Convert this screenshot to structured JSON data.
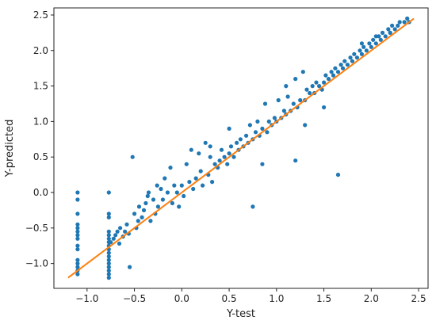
{
  "chart_data": {
    "type": "scatter",
    "title": "",
    "xlabel": "Y-test",
    "ylabel": "Y-predicted",
    "xlim": [
      -1.35,
      2.6
    ],
    "ylim": [
      -1.35,
      2.6
    ],
    "xticks": [
      -1.0,
      -0.5,
      0.0,
      0.5,
      1.0,
      1.5,
      2.0,
      2.5
    ],
    "yticks": [
      -1.0,
      -0.5,
      0.0,
      0.5,
      1.0,
      1.5,
      2.0,
      2.5
    ],
    "xtick_labels": [
      "−1.0",
      "−0.5",
      "0.0",
      "0.5",
      "1.0",
      "1.5",
      "2.0",
      "2.5"
    ],
    "ytick_labels": [
      "−1.0",
      "−0.5",
      "0.0",
      "0.5",
      "1.0",
      "1.5",
      "2.0",
      "2.5"
    ],
    "grid": false,
    "colors": {
      "points": "#1f77b4",
      "fit_line": "#ff7f0e",
      "axes": "#222222"
    },
    "series": [
      {
        "kind": "scatter",
        "points": [
          [
            -1.1,
            0.0
          ],
          [
            -1.1,
            -0.1
          ],
          [
            -1.1,
            -0.3
          ],
          [
            -1.1,
            -0.45
          ],
          [
            -1.1,
            -0.5
          ],
          [
            -1.1,
            -0.55
          ],
          [
            -1.1,
            -0.6
          ],
          [
            -1.1,
            -0.65
          ],
          [
            -1.1,
            -0.75
          ],
          [
            -1.1,
            -0.8
          ],
          [
            -1.1,
            -0.95
          ],
          [
            -1.1,
            -1.0
          ],
          [
            -1.1,
            -1.05
          ],
          [
            -1.1,
            -1.1
          ],
          [
            -1.1,
            -1.15
          ],
          [
            -0.77,
            0.0
          ],
          [
            -0.77,
            -0.3
          ],
          [
            -0.77,
            -0.35
          ],
          [
            -0.77,
            -0.55
          ],
          [
            -0.77,
            -0.6
          ],
          [
            -0.77,
            -0.65
          ],
          [
            -0.77,
            -0.7
          ],
          [
            -0.77,
            -0.75
          ],
          [
            -0.77,
            -0.8
          ],
          [
            -0.77,
            -0.85
          ],
          [
            -0.77,
            -0.9
          ],
          [
            -0.77,
            -0.95
          ],
          [
            -0.77,
            -1.0
          ],
          [
            -0.77,
            -1.05
          ],
          [
            -0.77,
            -1.1
          ],
          [
            -0.77,
            -1.15
          ],
          [
            -0.77,
            -1.2
          ],
          [
            -0.75,
            -0.7
          ],
          [
            -0.72,
            -0.65
          ],
          [
            -0.7,
            -0.6
          ],
          [
            -0.68,
            -0.55
          ],
          [
            -0.66,
            -0.72
          ],
          [
            -0.65,
            -0.5
          ],
          [
            -0.62,
            -0.62
          ],
          [
            -0.6,
            -0.55
          ],
          [
            -0.58,
            -0.45
          ],
          [
            -0.56,
            -0.58
          ],
          [
            -0.55,
            -1.05
          ],
          [
            -0.52,
            0.5
          ],
          [
            -0.5,
            -0.3
          ],
          [
            -0.48,
            -0.5
          ],
          [
            -0.46,
            -0.4
          ],
          [
            -0.45,
            -0.2
          ],
          [
            -0.42,
            -0.35
          ],
          [
            -0.4,
            -0.25
          ],
          [
            -0.38,
            -0.15
          ],
          [
            -0.36,
            -0.05
          ],
          [
            -0.35,
            0.0
          ],
          [
            -0.33,
            -0.4
          ],
          [
            -0.3,
            -0.1
          ],
          [
            -0.28,
            -0.3
          ],
          [
            -0.26,
            0.1
          ],
          [
            -0.25,
            -0.2
          ],
          [
            -0.22,
            0.05
          ],
          [
            -0.2,
            -0.1
          ],
          [
            -0.18,
            0.2
          ],
          [
            -0.15,
            0.0
          ],
          [
            -0.12,
            0.35
          ],
          [
            -0.1,
            -0.15
          ],
          [
            -0.08,
            0.1
          ],
          [
            -0.05,
            0.0
          ],
          [
            -0.03,
            -0.2
          ],
          [
            0.0,
            0.1
          ],
          [
            0.02,
            -0.05
          ],
          [
            0.05,
            0.4
          ],
          [
            0.08,
            0.15
          ],
          [
            0.1,
            0.6
          ],
          [
            0.12,
            0.05
          ],
          [
            0.15,
            0.2
          ],
          [
            0.18,
            0.55
          ],
          [
            0.2,
            0.3
          ],
          [
            0.22,
            0.1
          ],
          [
            0.25,
            0.7
          ],
          [
            0.28,
            0.25
          ],
          [
            0.3,
            0.5
          ],
          [
            0.32,
            0.15
          ],
          [
            0.35,
            0.4
          ],
          [
            0.38,
            0.35
          ],
          [
            0.4,
            0.45
          ],
          [
            0.42,
            0.6
          ],
          [
            0.45,
            0.5
          ],
          [
            0.48,
            0.4
          ],
          [
            0.5,
            0.55
          ],
          [
            0.52,
            0.65
          ],
          [
            0.55,
            0.5
          ],
          [
            0.58,
            0.7
          ],
          [
            0.6,
            0.6
          ],
          [
            0.62,
            0.75
          ],
          [
            0.65,
            0.65
          ],
          [
            0.68,
            0.8
          ],
          [
            0.7,
            0.7
          ],
          [
            0.72,
            0.95
          ],
          [
            0.75,
            0.75
          ],
          [
            0.78,
            0.85
          ],
          [
            0.8,
            1.0
          ],
          [
            0.82,
            0.8
          ],
          [
            0.85,
            0.9
          ],
          [
            0.88,
            1.25
          ],
          [
            0.9,
            0.85
          ],
          [
            0.92,
            1.0
          ],
          [
            0.95,
            0.95
          ],
          [
            0.98,
            1.05
          ],
          [
            1.0,
            1.0
          ],
          [
            1.02,
            1.3
          ],
          [
            1.05,
            1.05
          ],
          [
            1.08,
            1.15
          ],
          [
            1.1,
            1.1
          ],
          [
            1.12,
            1.35
          ],
          [
            1.15,
            1.15
          ],
          [
            1.18,
            1.25
          ],
          [
            1.2,
            1.6
          ],
          [
            1.22,
            1.2
          ],
          [
            1.25,
            1.3
          ],
          [
            1.28,
            1.7
          ],
          [
            1.3,
            1.3
          ],
          [
            1.32,
            1.45
          ],
          [
            1.35,
            1.4
          ],
          [
            1.38,
            1.5
          ],
          [
            1.4,
            1.4
          ],
          [
            1.42,
            1.55
          ],
          [
            1.45,
            1.5
          ],
          [
            1.48,
            1.45
          ],
          [
            1.5,
            1.55
          ],
          [
            1.52,
            1.65
          ],
          [
            1.55,
            1.6
          ],
          [
            1.58,
            1.7
          ],
          [
            1.6,
            1.65
          ],
          [
            1.62,
            1.75
          ],
          [
            1.65,
            1.7
          ],
          [
            1.68,
            1.8
          ],
          [
            1.7,
            1.75
          ],
          [
            1.72,
            1.85
          ],
          [
            1.75,
            1.8
          ],
          [
            1.78,
            1.9
          ],
          [
            1.8,
            1.85
          ],
          [
            1.82,
            1.95
          ],
          [
            1.85,
            1.9
          ],
          [
            1.88,
            2.0
          ],
          [
            1.9,
            1.95
          ],
          [
            1.92,
            2.05
          ],
          [
            1.95,
            2.0
          ],
          [
            1.98,
            2.1
          ],
          [
            2.0,
            2.05
          ],
          [
            2.02,
            2.15
          ],
          [
            2.05,
            2.1
          ],
          [
            2.08,
            2.2
          ],
          [
            2.1,
            2.15
          ],
          [
            2.12,
            2.25
          ],
          [
            2.15,
            2.2
          ],
          [
            2.18,
            2.3
          ],
          [
            2.2,
            2.25
          ],
          [
            2.22,
            2.35
          ],
          [
            2.25,
            2.3
          ],
          [
            2.28,
            2.35
          ],
          [
            2.3,
            2.4
          ],
          [
            2.35,
            2.4
          ],
          [
            2.38,
            2.45
          ],
          [
            2.4,
            2.4
          ],
          [
            1.2,
            0.45
          ],
          [
            0.75,
            -0.2
          ],
          [
            1.65,
            0.25
          ],
          [
            0.85,
            0.4
          ],
          [
            0.5,
            0.9
          ],
          [
            0.3,
            0.65
          ],
          [
            1.1,
            1.5
          ],
          [
            1.3,
            0.95
          ],
          [
            1.5,
            1.2
          ],
          [
            1.9,
            2.1
          ],
          [
            2.05,
            2.2
          ],
          [
            2.2,
            2.25
          ]
        ]
      },
      {
        "kind": "line",
        "points": [
          [
            -1.2,
            -1.2
          ],
          [
            2.45,
            2.45
          ]
        ]
      }
    ]
  }
}
